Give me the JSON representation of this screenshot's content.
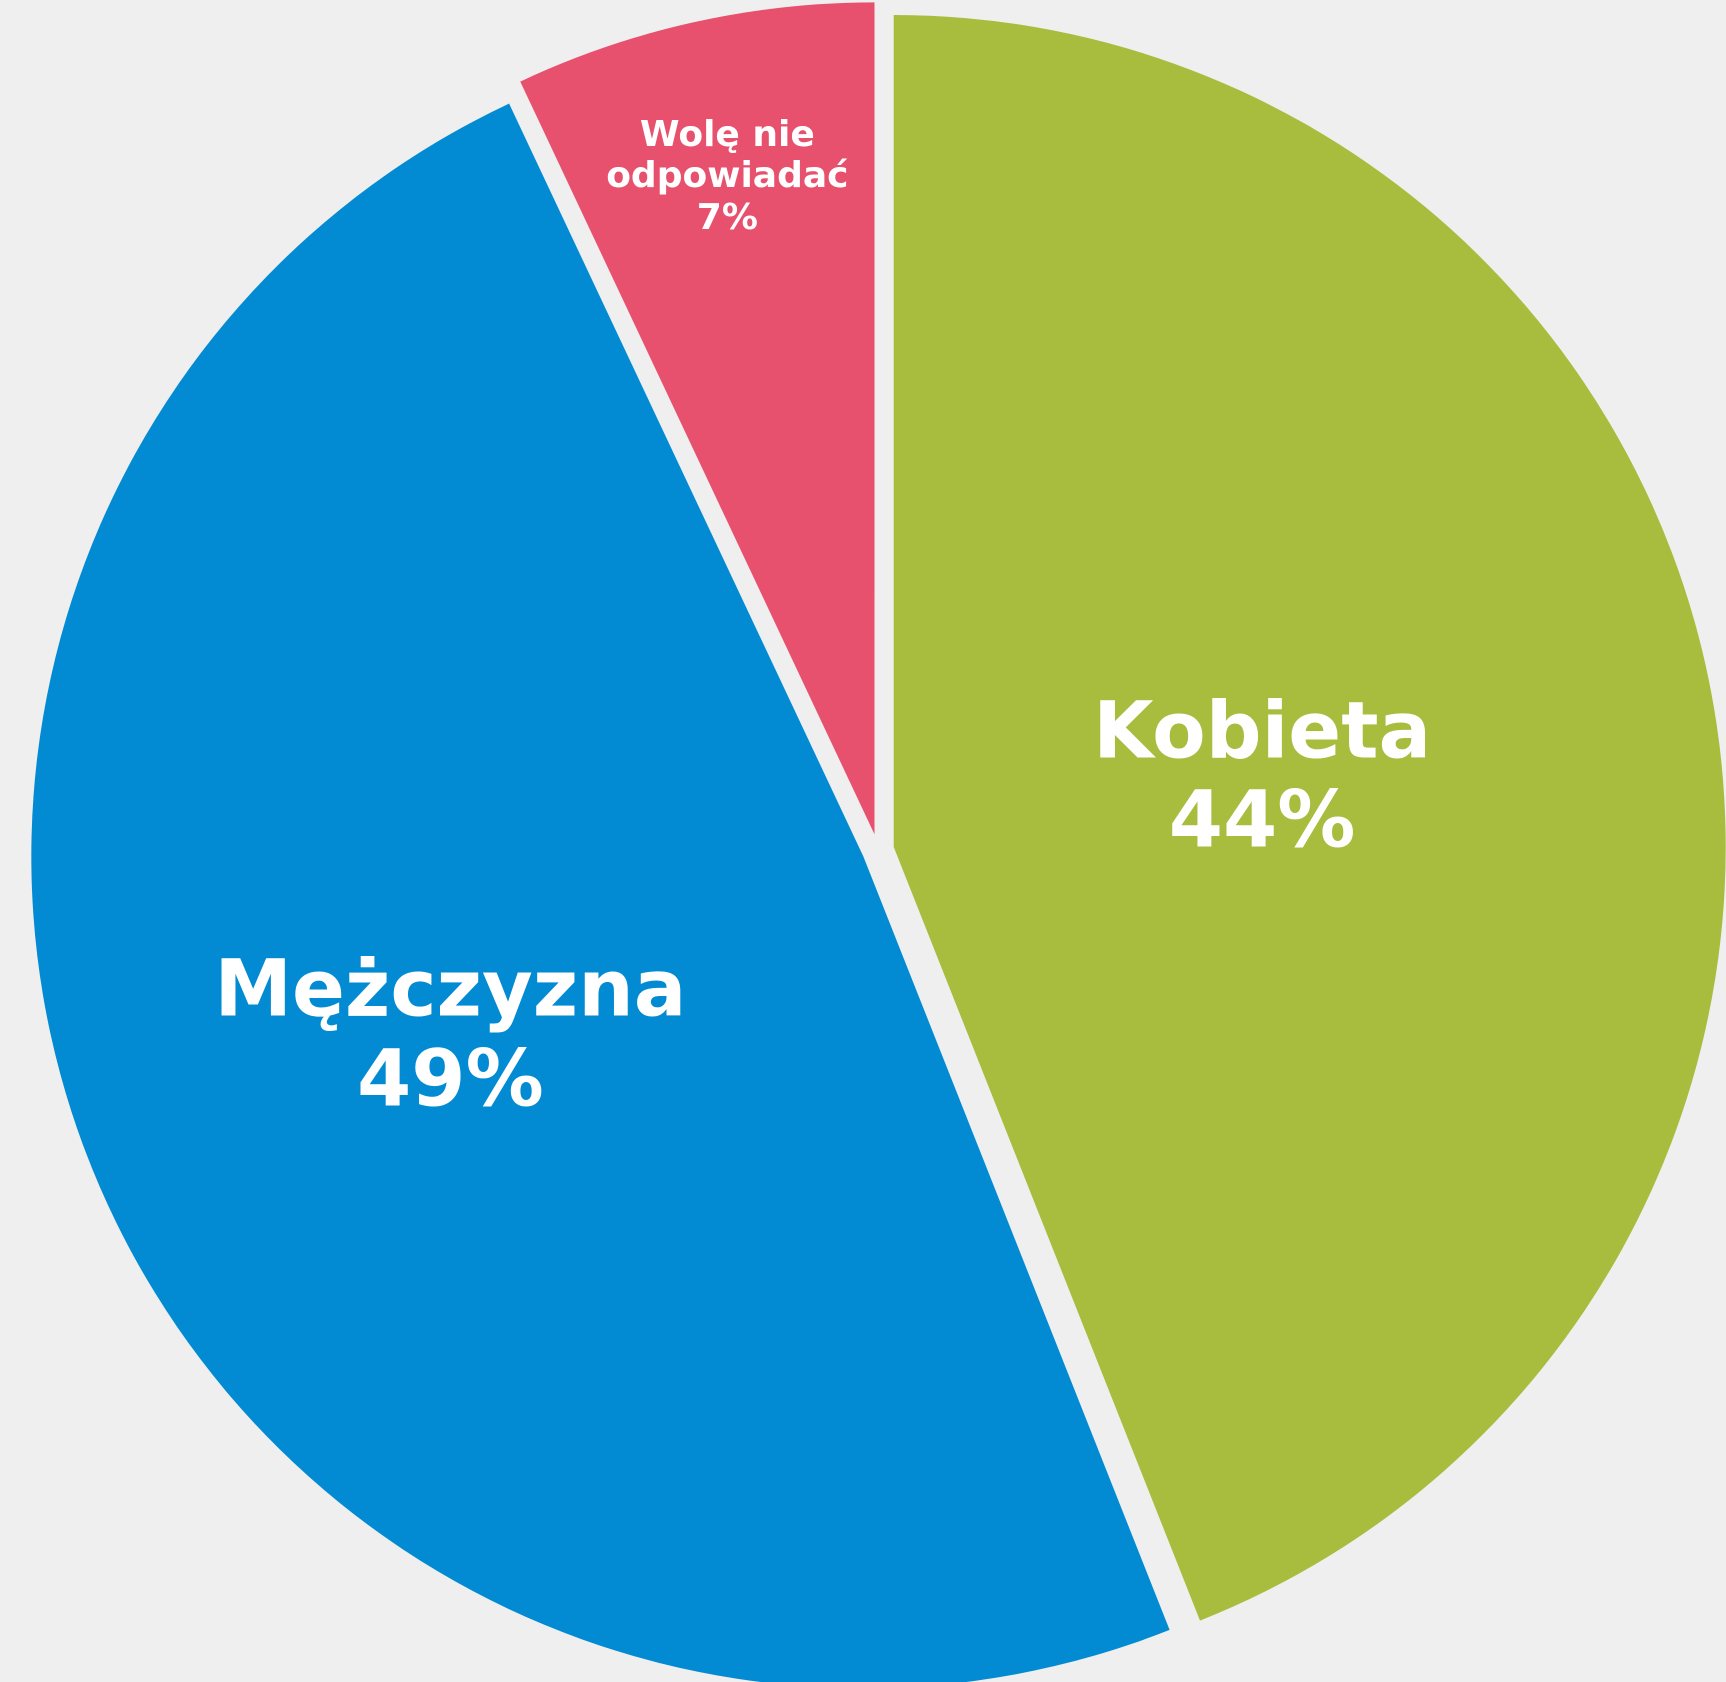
{
  "chart_data": {
    "type": "pie",
    "categories": [
      "Kobieta",
      "Mężczyzna",
      "Wolę nie odpowiadać"
    ],
    "values": [
      44,
      49,
      7
    ],
    "value_labels": [
      "44%",
      "49%",
      "7%"
    ],
    "colors": [
      "#a8bc3e",
      "#028bd3",
      "#e8516e"
    ]
  }
}
